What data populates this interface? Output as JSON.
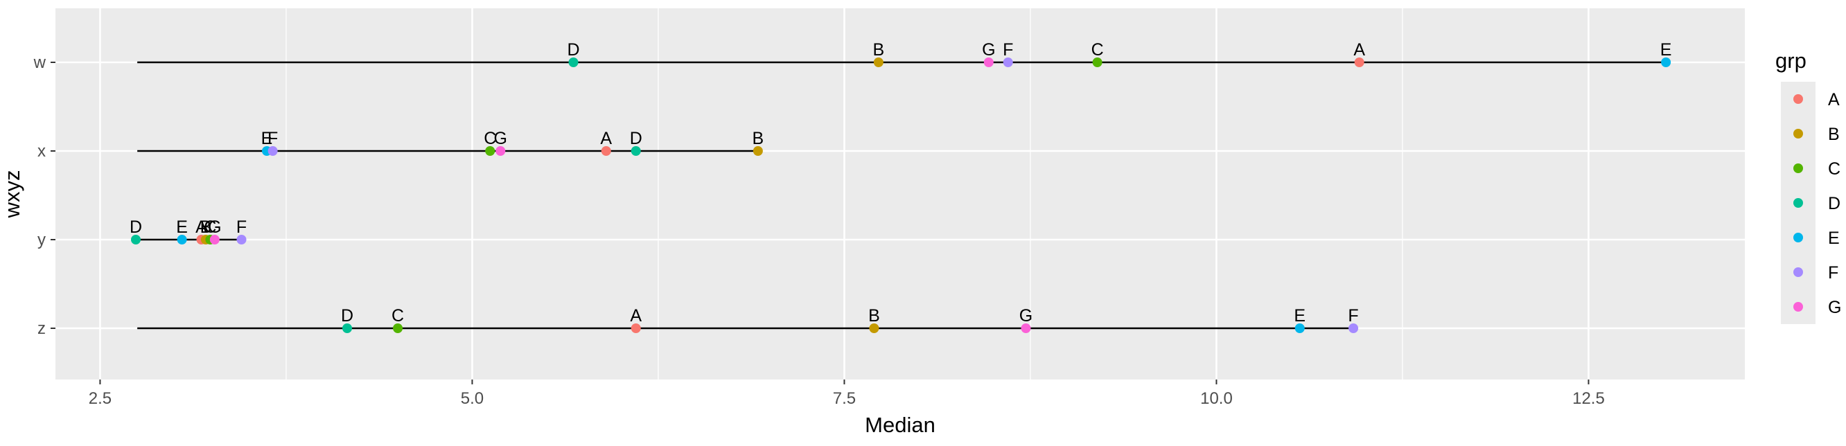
{
  "chart_data": {
    "type": "scatter",
    "xlabel": "Median",
    "ylabel": "wxyz",
    "xlim": [
      2.2,
      13.55
    ],
    "x_ticks": [
      "2.5",
      "5.0",
      "7.5",
      "10.0",
      "12.5"
    ],
    "x_tick_values": [
      2.5,
      5.0,
      7.5,
      10.0,
      12.5
    ],
    "categories": [
      "w",
      "x",
      "y",
      "z"
    ],
    "grid": true,
    "legend": {
      "title": "grp",
      "position": "right",
      "entries": [
        {
          "name": "A",
          "color": "#F8766D"
        },
        {
          "name": "B",
          "color": "#C49A00"
        },
        {
          "name": "C",
          "color": "#53B400"
        },
        {
          "name": "D",
          "color": "#00C094"
        },
        {
          "name": "E",
          "color": "#00B6EB"
        },
        {
          "name": "F",
          "color": "#A58AFF"
        },
        {
          "name": "G",
          "color": "#FB61D7"
        }
      ]
    },
    "segments": [
      {
        "category": "w",
        "x_start": 2.75,
        "x_end": 13.0
      },
      {
        "category": "x",
        "x_start": 2.75,
        "x_end": 6.92
      },
      {
        "category": "y",
        "x_start": 2.75,
        "x_end": 3.45
      },
      {
        "category": "z",
        "x_start": 2.75,
        "x_end": 10.92
      }
    ],
    "points": [
      {
        "category": "w",
        "grp": "D",
        "x": 5.68
      },
      {
        "category": "w",
        "grp": "B",
        "x": 7.73
      },
      {
        "category": "w",
        "grp": "G",
        "x": 8.47
      },
      {
        "category": "w",
        "grp": "F",
        "x": 8.6
      },
      {
        "category": "w",
        "grp": "C",
        "x": 9.2
      },
      {
        "category": "w",
        "grp": "A",
        "x": 10.96
      },
      {
        "category": "w",
        "grp": "E",
        "x": 13.02
      },
      {
        "category": "x",
        "grp": "E",
        "x": 3.62
      },
      {
        "category": "x",
        "grp": "F",
        "x": 3.66
      },
      {
        "category": "x",
        "grp": "C",
        "x": 5.12
      },
      {
        "category": "x",
        "grp": "G",
        "x": 5.19
      },
      {
        "category": "x",
        "grp": "A",
        "x": 5.9
      },
      {
        "category": "x",
        "grp": "D",
        "x": 6.1
      },
      {
        "category": "x",
        "grp": "B",
        "x": 6.92
      },
      {
        "category": "y",
        "grp": "D",
        "x": 2.74
      },
      {
        "category": "y",
        "grp": "E",
        "x": 3.05
      },
      {
        "category": "y",
        "grp": "A",
        "x": 3.18
      },
      {
        "category": "y",
        "grp": "B",
        "x": 3.21
      },
      {
        "category": "y",
        "grp": "C",
        "x": 3.24
      },
      {
        "category": "y",
        "grp": "G",
        "x": 3.27
      },
      {
        "category": "y",
        "grp": "F",
        "x": 3.45
      },
      {
        "category": "z",
        "grp": "D",
        "x": 4.16
      },
      {
        "category": "z",
        "grp": "C",
        "x": 4.5
      },
      {
        "category": "z",
        "grp": "A",
        "x": 6.1
      },
      {
        "category": "z",
        "grp": "B",
        "x": 7.7
      },
      {
        "category": "z",
        "grp": "G",
        "x": 8.72
      },
      {
        "category": "z",
        "grp": "E",
        "x": 10.56
      },
      {
        "category": "z",
        "grp": "F",
        "x": 10.92
      }
    ]
  }
}
